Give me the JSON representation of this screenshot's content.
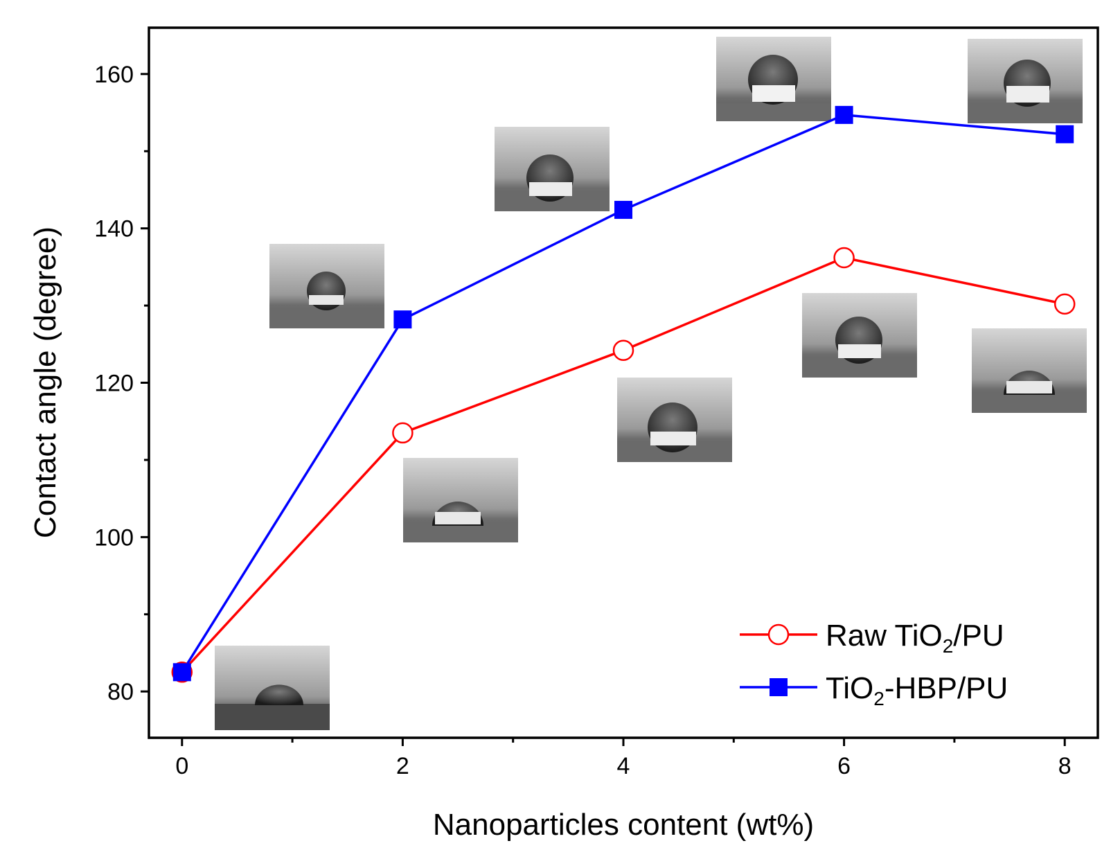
{
  "chart_data": {
    "type": "line",
    "title": "",
    "xlabel": "Nanoparticles content (wt%)",
    "ylabel": "Contact angle (degree)",
    "xlim": [
      -0.3,
      8.3
    ],
    "ylim": [
      74,
      166
    ],
    "x_ticks": [
      "0",
      "2",
      "4",
      "6",
      "8"
    ],
    "y_ticks": [
      "80",
      "100",
      "120",
      "140",
      "160"
    ],
    "grid": false,
    "legend_position": "bottom-right",
    "series": [
      {
        "name": "Raw TiO2/PU",
        "legend_parts": [
          "Raw TiO",
          "2",
          "/PU"
        ],
        "color": "#ff0000",
        "marker": "open-circle",
        "x": [
          0,
          2,
          4,
          6,
          8
        ],
        "y": [
          82.5,
          113.5,
          124.2,
          136.2,
          130.2
        ]
      },
      {
        "name": "TiO2-HBP/PU",
        "legend_parts": [
          "TiO",
          "2",
          "-HBP/PU"
        ],
        "color": "#0000ff",
        "marker": "filled-square",
        "x": [
          0,
          2,
          4,
          6,
          8
        ],
        "y": [
          82.5,
          128.2,
          142.4,
          154.7,
          152.2
        ]
      }
    ],
    "inset_images": "droplet photographs at each composition"
  }
}
